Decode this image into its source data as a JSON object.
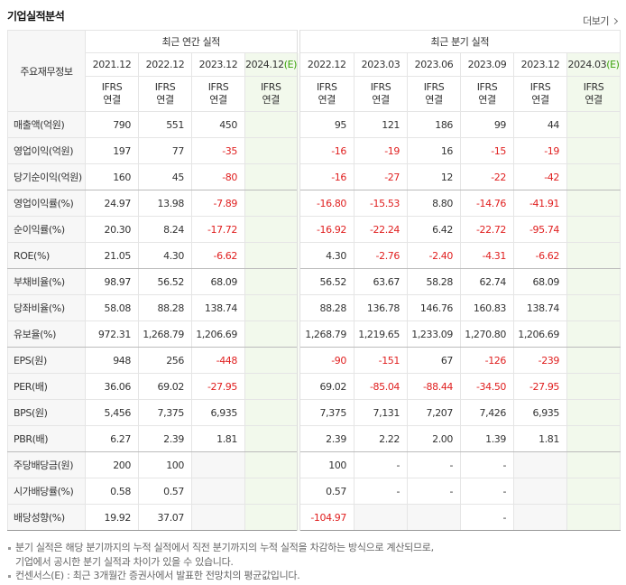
{
  "header": {
    "title": "기업실적분석",
    "more": "더보기"
  },
  "table": {
    "corner": "주요재무정보",
    "groups": [
      {
        "label": "최근 연간 실적",
        "span": 4
      },
      {
        "label": "최근 분기 실적",
        "span": 6
      }
    ],
    "columns": [
      {
        "period": "2021.12",
        "standard": "IFRS",
        "basis": "연결"
      },
      {
        "period": "2022.12",
        "standard": "IFRS",
        "basis": "연결"
      },
      {
        "period": "2023.12",
        "standard": "IFRS",
        "basis": "연결"
      },
      {
        "period": "2024.12",
        "estimate": "(E)",
        "standard": "IFRS",
        "basis": "연결"
      },
      {
        "period": "2022.12",
        "standard": "IFRS",
        "basis": "연결"
      },
      {
        "period": "2023.03",
        "standard": "IFRS",
        "basis": "연결"
      },
      {
        "period": "2023.06",
        "standard": "IFRS",
        "basis": "연결"
      },
      {
        "period": "2023.09",
        "standard": "IFRS",
        "basis": "연결"
      },
      {
        "period": "2023.12",
        "standard": "IFRS",
        "basis": "연결"
      },
      {
        "period": "2024.03",
        "estimate": "(E)",
        "standard": "IFRS",
        "basis": "연결"
      }
    ],
    "rows": [
      {
        "label": "매출액(억원)",
        "values": [
          "790",
          "551",
          "450",
          null,
          "95",
          "121",
          "186",
          "99",
          "44",
          null
        ]
      },
      {
        "label": "영업이익(억원)",
        "values": [
          "197",
          "77",
          "-35",
          null,
          "-16",
          "-19",
          "16",
          "-15",
          "-19",
          null
        ]
      },
      {
        "label": "당기순이익(억원)",
        "values": [
          "160",
          "45",
          "-80",
          null,
          "-16",
          "-27",
          "12",
          "-22",
          "-42",
          null
        ],
        "group_end": true
      },
      {
        "label": "영업이익률(%)",
        "values": [
          "24.97",
          "13.98",
          "-7.89",
          null,
          "-16.80",
          "-15.53",
          "8.80",
          "-14.76",
          "-41.91",
          null
        ]
      },
      {
        "label": "순이익률(%)",
        "values": [
          "20.30",
          "8.24",
          "-17.72",
          null,
          "-16.92",
          "-22.24",
          "6.42",
          "-22.72",
          "-95.74",
          null
        ]
      },
      {
        "label": "ROE(%)",
        "values": [
          "21.05",
          "4.30",
          "-6.62",
          null,
          "4.30",
          "-2.76",
          "-2.40",
          "-4.31",
          "-6.62",
          null
        ],
        "group_end": true
      },
      {
        "label": "부채비율(%)",
        "values": [
          "98.97",
          "56.52",
          "68.09",
          null,
          "56.52",
          "63.67",
          "58.28",
          "62.74",
          "68.09",
          null
        ]
      },
      {
        "label": "당좌비율(%)",
        "values": [
          "58.08",
          "88.28",
          "138.74",
          null,
          "88.28",
          "136.78",
          "146.76",
          "160.83",
          "138.74",
          null
        ]
      },
      {
        "label": "유보율(%)",
        "values": [
          "972.31",
          "1,268.79",
          "1,206.69",
          null,
          "1,268.79",
          "1,219.65",
          "1,233.09",
          "1,270.80",
          "1,206.69",
          null
        ],
        "group_end": true
      },
      {
        "label": "EPS(원)",
        "values": [
          "948",
          "256",
          "-448",
          null,
          "-90",
          "-151",
          "67",
          "-126",
          "-239",
          null
        ]
      },
      {
        "label": "PER(배)",
        "values": [
          "36.06",
          "69.02",
          "-27.95",
          null,
          "69.02",
          "-85.04",
          "-88.44",
          "-34.50",
          "-27.95",
          null
        ]
      },
      {
        "label": "BPS(원)",
        "values": [
          "5,456",
          "7,375",
          "6,935",
          null,
          "7,375",
          "7,131",
          "7,207",
          "7,426",
          "6,935",
          null
        ]
      },
      {
        "label": "PBR(배)",
        "values": [
          "6.27",
          "2.39",
          "1.81",
          null,
          "2.39",
          "2.22",
          "2.00",
          "1.39",
          "1.81",
          null
        ],
        "group_end": true
      },
      {
        "label": "주당배당금(원)",
        "values": [
          "200",
          "100",
          null,
          null,
          "100",
          "-",
          "-",
          "-",
          null,
          null
        ]
      },
      {
        "label": "시가배당률(%)",
        "values": [
          "0.58",
          "0.57",
          null,
          null,
          "0.57",
          "-",
          "-",
          "-",
          null,
          null
        ]
      },
      {
        "label": "배당성향(%)",
        "values": [
          "19.92",
          "37.07",
          null,
          null,
          "-104.97",
          null,
          null,
          "-",
          null,
          null
        ]
      }
    ]
  },
  "notes": [
    {
      "lines": [
        "분기 실적은 해당 분기까지의 누적 실적에서 직전 분기까지의 누적 실적을 차감하는 방식으로 계산되므로,",
        "기업에서 공시한 분기 실적과 차이가 있을 수 있습니다."
      ]
    },
    {
      "lines": [
        "컨센서스(E) : 최근 3개월간 증권사에서 발표한 전망치의 평균값입니다."
      ]
    }
  ]
}
